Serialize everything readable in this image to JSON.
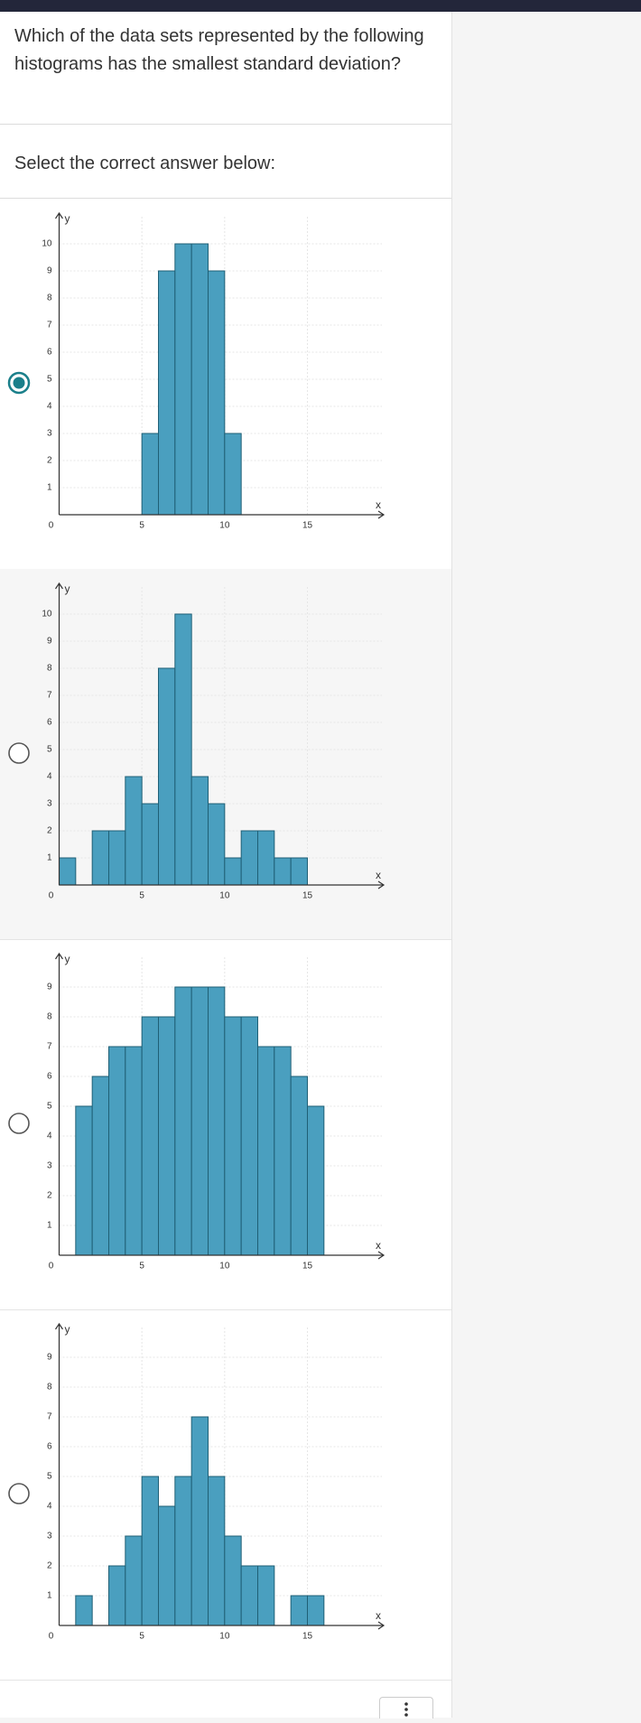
{
  "question": "Which of the data sets represented by the following histograms has the smallest standard deviation?",
  "instruction": "Select the correct answer below:",
  "options": [
    {
      "selected": true,
      "chart_data": {
        "type": "histogram",
        "xlabel": "x",
        "ylabel": "y",
        "color": "#4a9fbf",
        "bins": [
          5,
          6,
          7,
          8,
          9,
          10,
          11
        ],
        "values": [
          3,
          9,
          10,
          10,
          9,
          3
        ],
        "xlim": [
          0,
          19.5
        ],
        "ylim": [
          0,
          11
        ],
        "xticks": [
          0,
          5,
          10,
          15
        ],
        "yticks": [
          1,
          2,
          3,
          4,
          5,
          6,
          7,
          8,
          9,
          10
        ],
        "grid": true
      }
    },
    {
      "selected": false,
      "chart_data": {
        "type": "histogram",
        "xlabel": "x",
        "ylabel": "y",
        "color": "#4a9fbf",
        "bins": [
          0,
          1,
          2,
          3,
          4,
          5,
          6,
          7,
          8,
          9,
          10,
          11,
          12,
          13,
          14,
          15
        ],
        "values": [
          1,
          0,
          2,
          2,
          4,
          3,
          8,
          10,
          4,
          3,
          1,
          2,
          2,
          1,
          1
        ],
        "xlim": [
          0,
          19.5
        ],
        "ylim": [
          0,
          11
        ],
        "xticks": [
          0,
          5,
          10,
          15
        ],
        "yticks": [
          1,
          2,
          3,
          4,
          5,
          6,
          7,
          8,
          9,
          10
        ],
        "grid": true
      }
    },
    {
      "selected": false,
      "chart_data": {
        "type": "histogram",
        "xlabel": "x",
        "ylabel": "y",
        "color": "#4a9fbf",
        "bins": [
          1,
          2,
          3,
          4,
          5,
          6,
          7,
          8,
          9,
          10,
          11,
          12,
          13,
          14,
          15,
          16
        ],
        "values": [
          5,
          6,
          7,
          7,
          8,
          8,
          9,
          9,
          9,
          8,
          8,
          7,
          7,
          6,
          5
        ],
        "xlim": [
          0,
          19.5
        ],
        "ylim": [
          0,
          10
        ],
        "xticks": [
          0,
          5,
          10,
          15
        ],
        "yticks": [
          1,
          2,
          3,
          4,
          5,
          6,
          7,
          8,
          9
        ],
        "grid": true
      }
    },
    {
      "selected": false,
      "chart_data": {
        "type": "histogram",
        "xlabel": "x",
        "ylabel": "y",
        "color": "#4a9fbf",
        "bins": [
          1,
          2,
          3,
          4,
          5,
          6,
          7,
          8,
          9,
          10,
          11,
          12,
          13,
          14,
          15,
          16
        ],
        "values": [
          1,
          0,
          2,
          3,
          5,
          4,
          5,
          7,
          5,
          3,
          2,
          2,
          0,
          1,
          1
        ],
        "xlim": [
          0,
          19.5
        ],
        "ylim": [
          0,
          10
        ],
        "xticks": [
          0,
          5,
          10,
          15
        ],
        "yticks": [
          1,
          2,
          3,
          4,
          5,
          6,
          7,
          8,
          9
        ],
        "grid": true
      }
    }
  ]
}
